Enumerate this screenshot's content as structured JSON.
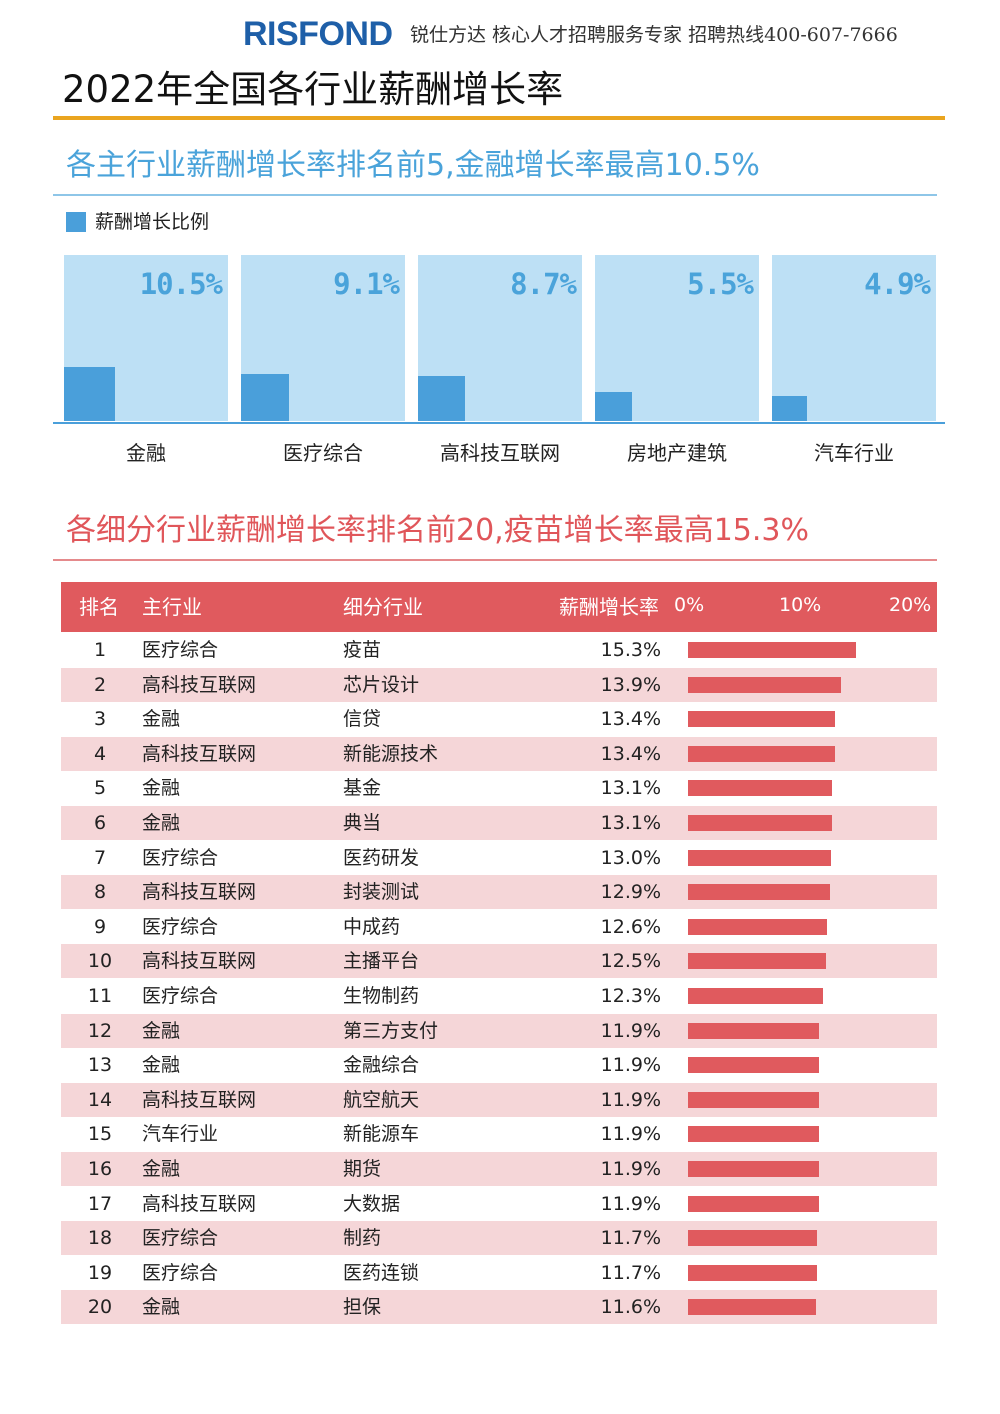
{
  "header": {
    "logo": "RISFOND",
    "slogan": "锐仕方达 核心人才招聘服务专家 招聘热线400-607-7666"
  },
  "page_title": "2022年全国各行业薪酬增长率",
  "section1": {
    "title": "各主行业薪酬增长率排名前5,金融增长率最高10.5%",
    "legend": "薪酬增长比例"
  },
  "section2": {
    "title": "各细分行业薪酬增长率排名前20,疫苗增长率最高15.3%",
    "headers": {
      "rank": "排名",
      "main": "主行业",
      "sub": "细分行业",
      "rate": "薪酬增长率"
    },
    "axis_ticks": [
      "0%",
      "10%",
      "20%"
    ]
  },
  "colors": {
    "blue": "#4a9fda",
    "light_blue": "#bde0f5",
    "red": "#e05a5e",
    "pink": "#f5d6d8",
    "gold": "#eaa51f"
  },
  "chart_data": [
    {
      "type": "bar",
      "title": "各主行业薪酬增长率排名前5,金融增长率最高10.5%",
      "series_name": "薪酬增长比例",
      "categories": [
        "金融",
        "医疗综合",
        "高科技互联网",
        "房地产建筑",
        "汽车行业"
      ],
      "values": [
        10.5,
        9.1,
        8.7,
        5.5,
        4.9
      ],
      "labels": [
        "10.5%",
        "9.1%",
        "8.7%",
        "5.5%",
        "4.9%"
      ],
      "ylim": [
        0,
        32
      ],
      "unit": "%"
    },
    {
      "type": "bar",
      "orientation": "horizontal",
      "title": "各细分行业薪酬增长率排名前20,疫苗增长率最高15.3%",
      "xlim": [
        0,
        20
      ],
      "unit": "%",
      "rows": [
        {
          "rank": "1",
          "main": "医疗综合",
          "sub": "疫苗",
          "value": 15.3,
          "label": "15.3%"
        },
        {
          "rank": "2",
          "main": "高科技互联网",
          "sub": "芯片设计",
          "value": 13.9,
          "label": "13.9%"
        },
        {
          "rank": "3",
          "main": "金融",
          "sub": "信贷",
          "value": 13.4,
          "label": "13.4%"
        },
        {
          "rank": "4",
          "main": "高科技互联网",
          "sub": "新能源技术",
          "value": 13.4,
          "label": "13.4%"
        },
        {
          "rank": "5",
          "main": "金融",
          "sub": "基金",
          "value": 13.1,
          "label": "13.1%"
        },
        {
          "rank": "6",
          "main": "金融",
          "sub": "典当",
          "value": 13.1,
          "label": "13.1%"
        },
        {
          "rank": "7",
          "main": "医疗综合",
          "sub": "医药研发",
          "value": 13.0,
          "label": "13.0%"
        },
        {
          "rank": "8",
          "main": "高科技互联网",
          "sub": "封装测试",
          "value": 12.9,
          "label": "12.9%"
        },
        {
          "rank": "9",
          "main": "医疗综合",
          "sub": "中成药",
          "value": 12.6,
          "label": "12.6%"
        },
        {
          "rank": "10",
          "main": "高科技互联网",
          "sub": "主播平台",
          "value": 12.5,
          "label": "12.5%"
        },
        {
          "rank": "11",
          "main": "医疗综合",
          "sub": "生物制药",
          "value": 12.3,
          "label": "12.3%"
        },
        {
          "rank": "12",
          "main": "金融",
          "sub": "第三方支付",
          "value": 11.9,
          "label": "11.9%"
        },
        {
          "rank": "13",
          "main": "金融",
          "sub": "金融综合",
          "value": 11.9,
          "label": "11.9%"
        },
        {
          "rank": "14",
          "main": "高科技互联网",
          "sub": "航空航天",
          "value": 11.9,
          "label": "11.9%"
        },
        {
          "rank": "15",
          "main": "汽车行业",
          "sub": "新能源车",
          "value": 11.9,
          "label": "11.9%"
        },
        {
          "rank": "16",
          "main": "金融",
          "sub": "期货",
          "value": 11.9,
          "label": "11.9%"
        },
        {
          "rank": "17",
          "main": "高科技互联网",
          "sub": "大数据",
          "value": 11.9,
          "label": "11.9%"
        },
        {
          "rank": "18",
          "main": "医疗综合",
          "sub": "制药",
          "value": 11.7,
          "label": "11.7%"
        },
        {
          "rank": "19",
          "main": "医疗综合",
          "sub": "医药连锁",
          "value": 11.7,
          "label": "11.7%"
        },
        {
          "rank": "20",
          "main": "金融",
          "sub": "担保",
          "value": 11.6,
          "label": "11.6%"
        }
      ]
    }
  ]
}
